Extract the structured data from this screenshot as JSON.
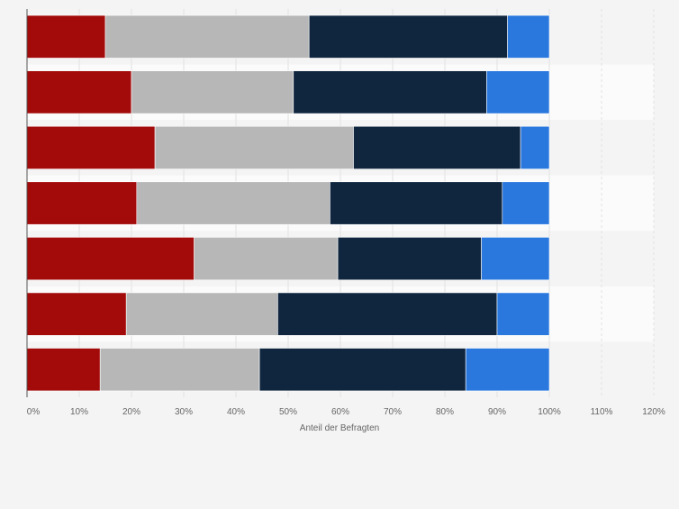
{
  "chart_data": {
    "type": "bar",
    "orientation": "horizontal",
    "stacked": true,
    "xlabel": "Anteil der Befragten",
    "xlim": [
      0,
      120
    ],
    "x_ticks": [
      "0%",
      "10%",
      "20%",
      "30%",
      "40%",
      "50%",
      "60%",
      "70%",
      "80%",
      "90%",
      "100%",
      "110%",
      "120%"
    ],
    "grid": true,
    "legend": "none",
    "categories": [
      "",
      "",
      "",
      "",
      "",
      "",
      ""
    ],
    "series": [
      {
        "color": "#a30a0a",
        "values": [
          15,
          20,
          24.5,
          21,
          32,
          19,
          14
        ]
      },
      {
        "color": "#b7b7b7",
        "values": [
          39,
          31,
          38,
          37,
          27.5,
          29,
          30.5
        ]
      },
      {
        "color": "#10263f",
        "values": [
          38,
          37,
          32,
          33,
          27.5,
          42,
          39.5
        ]
      },
      {
        "color": "#2a78de",
        "values": [
          8,
          12,
          5.5,
          9,
          13,
          10,
          16
        ]
      }
    ]
  }
}
